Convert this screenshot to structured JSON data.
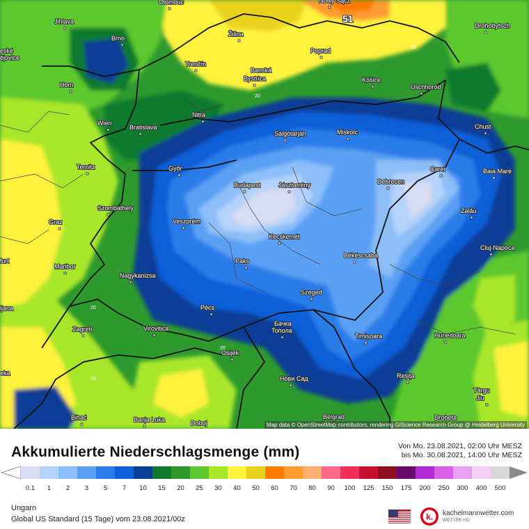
{
  "map": {
    "max_value": "51",
    "contour_value": "20",
    "attribution": "Map data © OpenStreetMap contributors, rendering GIScience Research Group @ Heidelberg University",
    "cities": [
      {
        "name": "Olomouc"
      },
      {
        "name": "Nowy Sącz"
      },
      {
        "name": "Jihlava"
      },
      {
        "name": "Brno"
      },
      {
        "name": "Žilina"
      },
      {
        "name": "Poprad"
      },
      {
        "name": "Drohobytsch"
      },
      {
        "name": "eské"
      },
      {
        "name": "ějovice"
      },
      {
        "name": "Trenčín"
      },
      {
        "name": "Banská"
      },
      {
        "name": "Bystrica"
      },
      {
        "name": "Košice"
      },
      {
        "name": "Uschhorod"
      },
      {
        "name": "Horn"
      },
      {
        "name": "Nitra"
      },
      {
        "name": "Wien"
      },
      {
        "name": "Bratislava"
      },
      {
        "name": "Salgótarján"
      },
      {
        "name": "Miskolc"
      },
      {
        "name": "Chust"
      },
      {
        "name": "Ternitz"
      },
      {
        "name": "Győr"
      },
      {
        "name": "Carei"
      },
      {
        "name": "Baia Mare"
      },
      {
        "name": "Budapest"
      },
      {
        "name": "Jászberény"
      },
      {
        "name": "Debrecen"
      },
      {
        "name": "Szombathely"
      },
      {
        "name": "Zalău"
      },
      {
        "name": "Graz"
      },
      {
        "name": "Veszprém"
      },
      {
        "name": "Kecskemét"
      },
      {
        "name": "Cluj-Napoca"
      },
      {
        "name": "furt"
      },
      {
        "name": "Paks"
      },
      {
        "name": "Békéscsaba"
      },
      {
        "name": "Maribor"
      },
      {
        "name": "Nagykanizsa"
      },
      {
        "name": "Szeged"
      },
      {
        "name": "ljana"
      },
      {
        "name": "Pécs"
      },
      {
        "name": "Бачка"
      },
      {
        "name": "Топола"
      },
      {
        "name": "Zagreb"
      },
      {
        "name": "Virovitica"
      },
      {
        "name": "Timișoara"
      },
      {
        "name": "Hunedoara"
      },
      {
        "name": "Osijek"
      },
      {
        "name": "eka"
      },
      {
        "name": "Нови Сад"
      },
      {
        "name": "Reșița"
      },
      {
        "name": "Târgu"
      },
      {
        "name": "Jiu"
      },
      {
        "name": "Bihać"
      },
      {
        "name": "Banja Luka"
      },
      {
        "name": "Doboj"
      },
      {
        "name": "Belgrad"
      },
      {
        "name": "Drobeta"
      }
    ]
  },
  "legend": {
    "title": "Akkumulierte Niederschlagsmenge (mm)",
    "period_from": "Von Mo. 23.08.2021, 02:00 Uhr MESZ",
    "period_to": "bis Mo. 30.08.2021, 14:00 Uhr MESZ",
    "ticks": [
      "0.1",
      "1",
      "2",
      "3",
      "5",
      "7",
      "10",
      "15",
      "20",
      "25",
      "30",
      "40",
      "50",
      "60",
      "70",
      "80",
      "90",
      "100",
      "125",
      "150",
      "175",
      "200",
      "250",
      "300",
      "400",
      "500"
    ],
    "colors": [
      "#d8dcf2",
      "#b4d2fa",
      "#8cbef8",
      "#5aa0f4",
      "#2b7de9",
      "#0f5fd8",
      "#0a3e96",
      "#0d7a2e",
      "#2e9a2e",
      "#5cc82e",
      "#a8e62a",
      "#fff23c",
      "#e8d21e",
      "#ff7a00",
      "#ff9b30",
      "#ffb070",
      "#ff6a8a",
      "#f0305a",
      "#c8102e",
      "#8c0f1e",
      "#6a0a6a",
      "#b22ad8",
      "#d860e8",
      "#e8a0f0",
      "#f4d0f8",
      "#d8d8d8"
    ]
  },
  "footer": {
    "region": "Ungarn",
    "model": "Global US Standard (15 Tage) vom 23.08.2021/00z",
    "brand": "kachelmannwetter.com",
    "brand_sub": "WETTER HD",
    "logo_letter": "k."
  }
}
